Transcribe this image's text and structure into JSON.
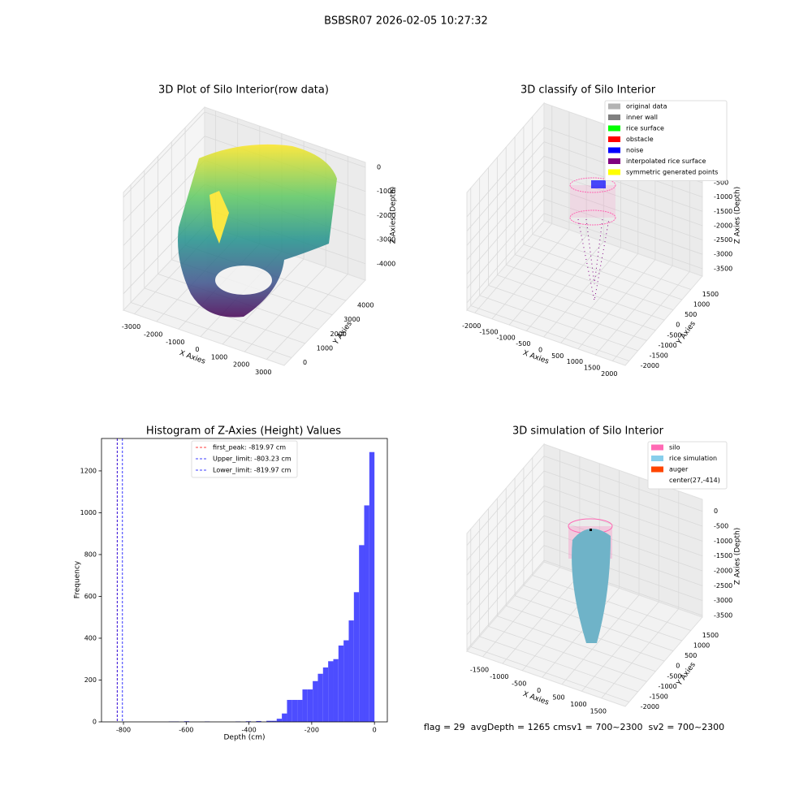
{
  "title": "BSBSR07 2026-02-05 10:27:32",
  "chart_data": [
    {
      "type": "scatter3d",
      "title": "3D Plot of Silo Interior(row data)",
      "xlabel": "X Axies",
      "ylabel": "Y Axies",
      "zlabel": "Z Axies (Depth)",
      "xlim": [
        -3500,
        3800
      ],
      "ylim": [
        -540,
        5430
      ],
      "zlim": [
        -4680,
        200
      ],
      "xticks": [
        -3000,
        -2000,
        -1000,
        0,
        1000,
        2000,
        3000
      ],
      "yticks": [
        0,
        1000,
        2000,
        3000,
        4000
      ],
      "zticks": [
        0,
        -1000,
        -2000,
        -3000,
        -4000
      ]
    },
    {
      "type": "scatter3d",
      "title": "3D classify of Silo Interior",
      "xlabel": "X Axies",
      "ylabel": "Y Axies",
      "zlabel": "Z Axies (Depth)",
      "xlim": [
        -2230,
        2370
      ],
      "ylim": [
        -2220,
        2155
      ],
      "zlim": [
        -3760,
        350
      ],
      "xticks": [
        -2000,
        -1500,
        -1000,
        -500,
        0,
        500,
        1000,
        1500,
        2000
      ],
      "yticks": [
        -2000,
        -1500,
        -1000,
        -500,
        0,
        500,
        1000,
        1500
      ],
      "zticks": [
        -500,
        -1000,
        -1500,
        -2000,
        -2500,
        -3000,
        -3500
      ],
      "legend_entries": [
        {
          "name": "original data",
          "color": "#b3b3b3"
        },
        {
          "name": "inner wall",
          "color": "#808080"
        },
        {
          "name": "rice surface",
          "color": "#00ff00"
        },
        {
          "name": "obstacle",
          "color": "#ff0000"
        },
        {
          "name": "noise",
          "color": "#0000ff"
        },
        {
          "name": "interpolated rice surface",
          "color": "#800080"
        },
        {
          "name": "symmetric generated points",
          "color": "#ffff00"
        }
      ]
    },
    {
      "type": "histogram",
      "title": "Histogram of Z-Axies (Height) Values",
      "xlabel": "Depth (cm)",
      "ylabel": "Frequency",
      "color": "#4d4dff",
      "bins": [
        -819.97,
        -803.57,
        -787.17,
        -770.77,
        -754.37,
        -737.97,
        -721.57,
        -705.17,
        -688.77,
        -672.37,
        -655.97,
        -639.57,
        -623.17,
        -606.77,
        -590.37,
        -573.97,
        -557.57,
        -541.17,
        -524.77,
        -508.37,
        -491.97,
        -475.57,
        -459.17,
        -442.77,
        -426.37,
        -409.97,
        -393.57,
        -377.17,
        -360.77,
        -344.37,
        -327.97,
        -311.57,
        -295.17,
        -278.77,
        -262.37,
        -245.97,
        -229.57,
        -213.17,
        -196.77,
        -180.37,
        -163.97,
        -147.57,
        -131.17,
        -114.77,
        -98.37,
        -81.97,
        -65.57,
        -49.17,
        -32.77,
        -16.37,
        0.03
      ],
      "counts": [
        0,
        0,
        0,
        0,
        0,
        0,
        0,
        0,
        0,
        0,
        2,
        2,
        0,
        3,
        0,
        0,
        0,
        2,
        0,
        0,
        0,
        0,
        0,
        2,
        0,
        3,
        0,
        4,
        0,
        5,
        5,
        15,
        40,
        105,
        105,
        105,
        155,
        155,
        195,
        230,
        260,
        290,
        300,
        365,
        390,
        485,
        620,
        845,
        1035,
        1290
      ],
      "xlim": [
        -870,
        41
      ],
      "ylim": [
        0,
        1355
      ],
      "xticks": [
        -800,
        -600,
        -400,
        -200,
        0
      ],
      "yticks": [
        0,
        200,
        400,
        600,
        800,
        1000,
        1200
      ],
      "lines": [
        {
          "name": "first_peak: -819.97 cm",
          "value": -819.97,
          "color": "#ff0000"
        },
        {
          "name": "Upper_limit: -803.23 cm",
          "value": -803.23,
          "color": "#0000ff"
        },
        {
          "name": "Lower_limit: -819.97 cm",
          "value": -819.97,
          "color": "#0000ff"
        }
      ],
      "legend": "upper center"
    },
    {
      "type": "surface3d",
      "title": "3D simulation of Silo Interior",
      "xlabel": "X Axies",
      "ylabel": "Y Axies",
      "zlabel": "Z Axies (Depth)",
      "xlim": [
        -1900,
        2100
      ],
      "ylim": [
        -2220,
        2155
      ],
      "zlim": [
        -3555,
        400
      ],
      "xticks": [
        -1500,
        -1000,
        -500,
        0,
        500,
        1000,
        1500
      ],
      "yticks": [
        -2000,
        -1500,
        -1000,
        -500,
        0,
        500,
        1000,
        1500
      ],
      "zticks": [
        0,
        -500,
        -1000,
        -1500,
        -2000,
        -2500,
        -3000,
        -3500
      ],
      "legend_entries": [
        {
          "name": "silo",
          "color": "#ff69b4"
        },
        {
          "name": "rice simulation",
          "color": "#87ceeb"
        },
        {
          "name": "auger",
          "color": "#ff4500"
        },
        {
          "name": "center(27,-414)",
          "color": "#ffffff"
        }
      ]
    }
  ],
  "footer": "flag = 29  avgDepth = 1265 cmsv1 = 700~2300  sv2 = 700~2300"
}
